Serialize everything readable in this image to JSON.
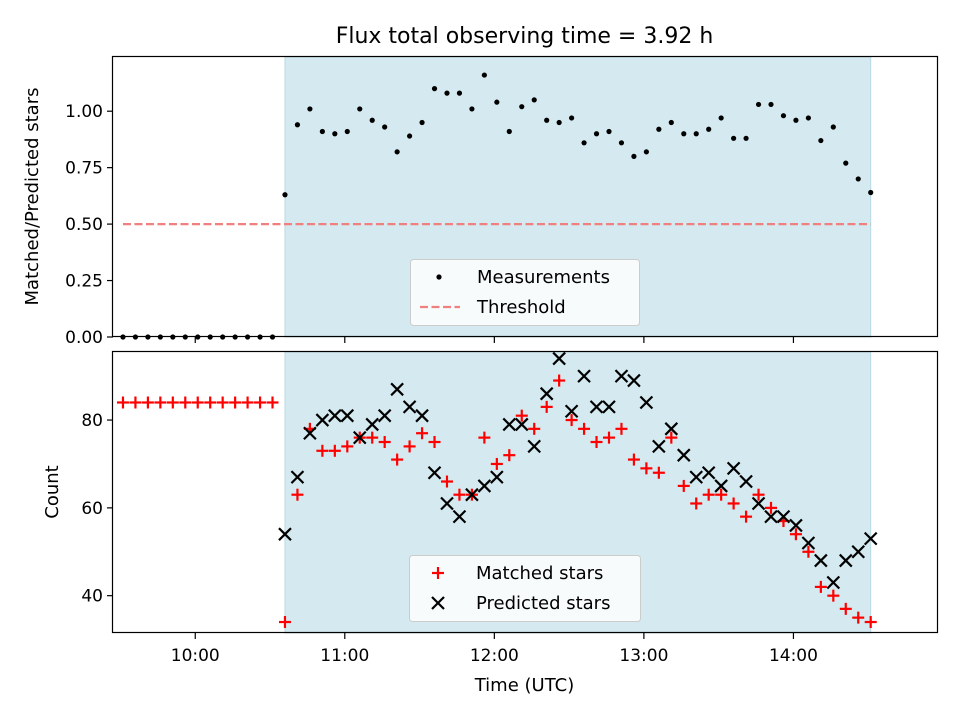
{
  "chart_data": [
    {
      "type": "scatter",
      "title": "Flux total observing time = 3.92 h",
      "xlabel": "",
      "ylabel": "Matched/Predicted stars",
      "xlim": [
        "09:27",
        "14:58"
      ],
      "ylim": [
        0,
        1.24
      ],
      "yticks": [
        "0.00",
        "0.25",
        "0.50",
        "0.75",
        "1.00"
      ],
      "shaded_interval": [
        "10:36",
        "14:31"
      ],
      "shade_color": "#d4eaf0",
      "grid": false,
      "legend_position": "lower-center",
      "legend": [
        "Measurements",
        "Threshold"
      ],
      "series": [
        {
          "name": "Measurements",
          "marker": "dot",
          "color": "#000000",
          "x": [
            "09:31",
            "09:36",
            "09:41",
            "09:46",
            "09:51",
            "09:56",
            "10:01",
            "10:06",
            "10:11",
            "10:16",
            "10:21",
            "10:26",
            "10:31",
            "10:36",
            "10:41",
            "10:46",
            "10:51",
            "10:56",
            "11:01",
            "11:06",
            "11:11",
            "11:16",
            "11:21",
            "11:26",
            "11:31",
            "11:36",
            "11:41",
            "11:46",
            "11:51",
            "11:56",
            "12:01",
            "12:06",
            "12:11",
            "12:16",
            "12:21",
            "12:26",
            "12:31",
            "12:36",
            "12:41",
            "12:46",
            "12:51",
            "12:56",
            "13:01",
            "13:06",
            "13:11",
            "13:16",
            "13:21",
            "13:26",
            "13:31",
            "13:36",
            "13:41",
            "13:46",
            "13:51",
            "13:56",
            "14:01",
            "14:06",
            "14:11",
            "14:16",
            "14:21",
            "14:26",
            "14:31"
          ],
          "y": [
            0,
            0,
            0,
            0,
            0,
            0,
            0,
            0,
            0,
            0,
            0,
            0,
            0,
            0.63,
            0.94,
            1.01,
            0.91,
            0.9,
            0.91,
            1.01,
            0.96,
            0.93,
            0.82,
            0.89,
            0.95,
            1.1,
            1.08,
            1.08,
            1.01,
            1.16,
            1.04,
            0.91,
            1.02,
            1.05,
            0.96,
            0.95,
            0.97,
            0.86,
            0.9,
            0.91,
            0.86,
            0.8,
            0.82,
            0.92,
            0.95,
            0.9,
            0.9,
            0.92,
            0.97,
            0.88,
            0.88,
            1.03,
            1.03,
            0.98,
            0.96,
            0.97,
            0.87,
            0.93,
            0.77,
            0.7,
            0.64
          ]
        },
        {
          "name": "Threshold",
          "style": "dashed",
          "color": "#f08080",
          "x": [
            "09:31",
            "14:31"
          ],
          "y": [
            0.5,
            0.5
          ]
        }
      ]
    },
    {
      "type": "scatter",
      "title": "",
      "xlabel": "Time (UTC)",
      "ylabel": "Count",
      "xlim": [
        "09:27",
        "14:58"
      ],
      "ylim": [
        31.5,
        95.5
      ],
      "xticks": [
        "10:00",
        "11:00",
        "12:00",
        "13:00",
        "14:00"
      ],
      "yticks": [
        "40",
        "60",
        "80"
      ],
      "shaded_interval": [
        "10:36",
        "14:31"
      ],
      "shade_color": "#d4eaf0",
      "grid": false,
      "legend_position": "lower-center",
      "legend": [
        "Matched stars",
        "Predicted stars"
      ],
      "series": [
        {
          "name": "Matched stars",
          "marker": "plus",
          "color": "#ff0000",
          "x": [
            "09:31",
            "09:36",
            "09:41",
            "09:46",
            "09:51",
            "09:56",
            "10:01",
            "10:06",
            "10:11",
            "10:16",
            "10:21",
            "10:26",
            "10:31",
            "10:36",
            "10:41",
            "10:46",
            "10:51",
            "10:56",
            "11:01",
            "11:06",
            "11:11",
            "11:16",
            "11:21",
            "11:26",
            "11:31",
            "11:36",
            "11:41",
            "11:46",
            "11:51",
            "11:56",
            "12:01",
            "12:06",
            "12:11",
            "12:16",
            "12:21",
            "12:26",
            "12:31",
            "12:36",
            "12:41",
            "12:46",
            "12:51",
            "12:56",
            "13:01",
            "13:06",
            "13:11",
            "13:16",
            "13:21",
            "13:26",
            "13:31",
            "13:36",
            "13:41",
            "13:46",
            "13:51",
            "13:56",
            "14:01",
            "14:06",
            "14:11",
            "14:16",
            "14:21",
            "14:26",
            "14:31"
          ],
          "y": [
            84,
            84,
            84,
            84,
            84,
            84,
            84,
            84,
            84,
            84,
            84,
            84,
            84,
            34,
            63,
            78,
            73,
            73,
            74,
            76,
            76,
            75,
            71,
            74,
            77,
            75,
            66,
            63,
            63,
            76,
            70,
            72,
            81,
            78,
            83,
            89,
            80,
            78,
            75,
            76,
            78,
            71,
            69,
            68,
            76,
            65,
            61,
            63,
            63,
            61,
            58,
            63,
            60,
            57,
            54,
            50,
            42,
            40,
            37,
            35,
            34
          ]
        },
        {
          "name": "Predicted stars",
          "marker": "x",
          "color": "#000000",
          "x": [
            "10:36",
            "10:41",
            "10:46",
            "10:51",
            "10:56",
            "11:01",
            "11:06",
            "11:11",
            "11:16",
            "11:21",
            "11:26",
            "11:31",
            "11:36",
            "11:41",
            "11:46",
            "11:51",
            "11:56",
            "12:01",
            "12:06",
            "12:11",
            "12:16",
            "12:21",
            "12:26",
            "12:31",
            "12:36",
            "12:41",
            "12:46",
            "12:51",
            "12:56",
            "13:01",
            "13:06",
            "13:11",
            "13:16",
            "13:21",
            "13:26",
            "13:31",
            "13:36",
            "13:41",
            "13:46",
            "13:51",
            "13:56",
            "14:01",
            "14:06",
            "14:11",
            "14:16",
            "14:21",
            "14:26",
            "14:31"
          ],
          "y": [
            54,
            67,
            77,
            80,
            81,
            81,
            76,
            79,
            81,
            87,
            83,
            81,
            68,
            61,
            58,
            63,
            65,
            67,
            79,
            79,
            74,
            86,
            94,
            82,
            90,
            83,
            83,
            90,
            89,
            84,
            74,
            78,
            72,
            67,
            68,
            65,
            69,
            66,
            61,
            58,
            58,
            56,
            52,
            48,
            43,
            48,
            50,
            53
          ]
        }
      ]
    }
  ]
}
